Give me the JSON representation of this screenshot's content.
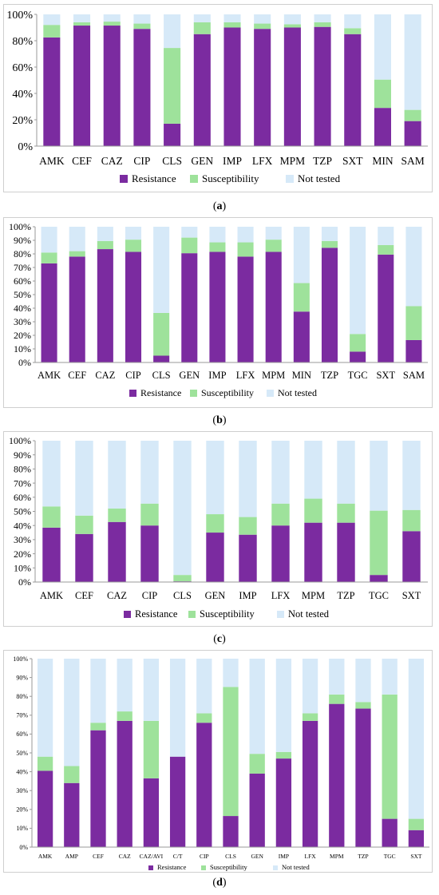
{
  "colors": {
    "resistance": "#7b2ba0",
    "susceptibility": "#9ee29b",
    "not_tested": "#d6e9f8",
    "border": "#cfcfcf",
    "axis": "#9a9a9a"
  },
  "captions": [
    "a",
    "b",
    "c",
    "d"
  ],
  "chart_data": [
    {
      "type": "bar",
      "stacked": true,
      "categories": [
        "AMK",
        "CEF",
        "CAZ",
        "CIP",
        "CLS",
        "GEN",
        "IMP",
        "LFX",
        "MPM",
        "TZP",
        "SXT",
        "MIN",
        "SAM"
      ],
      "series": [
        {
          "name": "Resistance",
          "values": [
            82.5,
            91.5,
            91.5,
            89,
            17,
            85,
            90,
            89,
            90,
            90.5,
            85,
            29,
            19
          ]
        },
        {
          "name": "Susceptibility",
          "values": [
            9.5,
            2.5,
            3,
            4,
            57.5,
            9,
            4,
            4,
            2.5,
            3.5,
            4.5,
            21.5,
            8.5
          ]
        },
        {
          "name": "Not tested",
          "values": [
            8,
            6,
            5.5,
            7,
            25.5,
            6,
            6,
            7,
            7.5,
            6,
            10.5,
            49.5,
            72.5
          ]
        }
      ],
      "yticks": [
        "0%",
        "20%",
        "40%",
        "60%",
        "80%",
        "100%"
      ],
      "ylim": [
        0,
        100
      ],
      "legend": "bottom"
    },
    {
      "type": "bar",
      "stacked": true,
      "categories": [
        "AMK",
        "CEF",
        "CAZ",
        "CIP",
        "CLS",
        "GEN",
        "IMP",
        "LFX",
        "MPM",
        "MIN",
        "TZP",
        "TGC",
        "SXT",
        "SAM"
      ],
      "series": [
        {
          "name": "Resistance",
          "values": [
            73,
            78,
            83.5,
            81.5,
            5,
            80.5,
            81.5,
            78,
            81.5,
            37.5,
            84.5,
            8,
            79.5,
            16.5
          ]
        },
        {
          "name": "Susceptibility",
          "values": [
            8,
            4,
            6,
            9,
            31.5,
            11.5,
            7,
            10.5,
            9,
            21,
            5,
            13,
            7,
            25
          ]
        },
        {
          "name": "Not tested",
          "values": [
            19,
            18,
            10.5,
            9.5,
            63.5,
            8,
            11.5,
            11.5,
            9.5,
            41.5,
            10.5,
            79,
            13.5,
            58.5
          ]
        }
      ],
      "yticks": [
        "0%",
        "10%",
        "20%",
        "30%",
        "40%",
        "50%",
        "60%",
        "70%",
        "80%",
        "90%",
        "100%"
      ],
      "ylim": [
        0,
        100
      ],
      "legend": "bottom"
    },
    {
      "type": "bar",
      "stacked": true,
      "categories": [
        "AMK",
        "CEF",
        "CAZ",
        "CIP",
        "CLS",
        "GEN",
        "IMP",
        "LFX",
        "MPM",
        "TZP",
        "TGC",
        "SXT"
      ],
      "series": [
        {
          "name": "Resistance",
          "values": [
            38.5,
            34,
            42.5,
            40,
            0.5,
            35,
            33.5,
            40,
            42,
            42,
            5,
            36
          ]
        },
        {
          "name": "Susceptibility",
          "values": [
            15,
            13,
            9.5,
            15.5,
            4.5,
            13,
            12.5,
            15.5,
            17,
            13.5,
            45.5,
            15
          ]
        },
        {
          "name": "Not tested",
          "values": [
            46.5,
            53,
            48,
            44.5,
            95,
            52,
            54,
            44.5,
            41,
            44.5,
            49.5,
            49
          ]
        }
      ],
      "yticks": [
        "0%",
        "10%",
        "20%",
        "30%",
        "40%",
        "50%",
        "60%",
        "70%",
        "80%",
        "90%",
        "100%"
      ],
      "ylim": [
        0,
        100
      ],
      "legend": "bottom"
    },
    {
      "type": "bar",
      "stacked": true,
      "categories": [
        "AMK",
        "AMP",
        "CEF",
        "CAZ",
        "CAZ/AVI",
        "C/T",
        "CIP",
        "CLS",
        "GEN",
        "IMP",
        "LFX",
        "MPM",
        "TZP",
        "TGC",
        "SXT"
      ],
      "series": [
        {
          "name": "Resistance",
          "values": [
            40.5,
            34,
            62,
            67,
            36.5,
            48,
            66,
            16.5,
            39,
            47,
            67,
            76,
            73.5,
            15,
            9
          ]
        },
        {
          "name": "Susceptibility",
          "values": [
            7.5,
            9,
            4,
            5,
            30.5,
            0,
            5,
            68.5,
            10.5,
            3.5,
            4,
            5,
            3.5,
            66,
            6
          ]
        },
        {
          "name": "Not tested",
          "values": [
            52,
            57,
            34,
            28,
            33,
            52,
            29,
            15,
            50.5,
            49.5,
            29,
            19,
            23,
            19,
            85
          ]
        }
      ],
      "yticks": [
        "0%",
        "10%",
        "20%",
        "30%",
        "40%",
        "50%",
        "60%",
        "70%",
        "80%",
        "90%",
        "100%"
      ],
      "ylim": [
        0,
        100
      ],
      "legend": "bottom"
    }
  ]
}
